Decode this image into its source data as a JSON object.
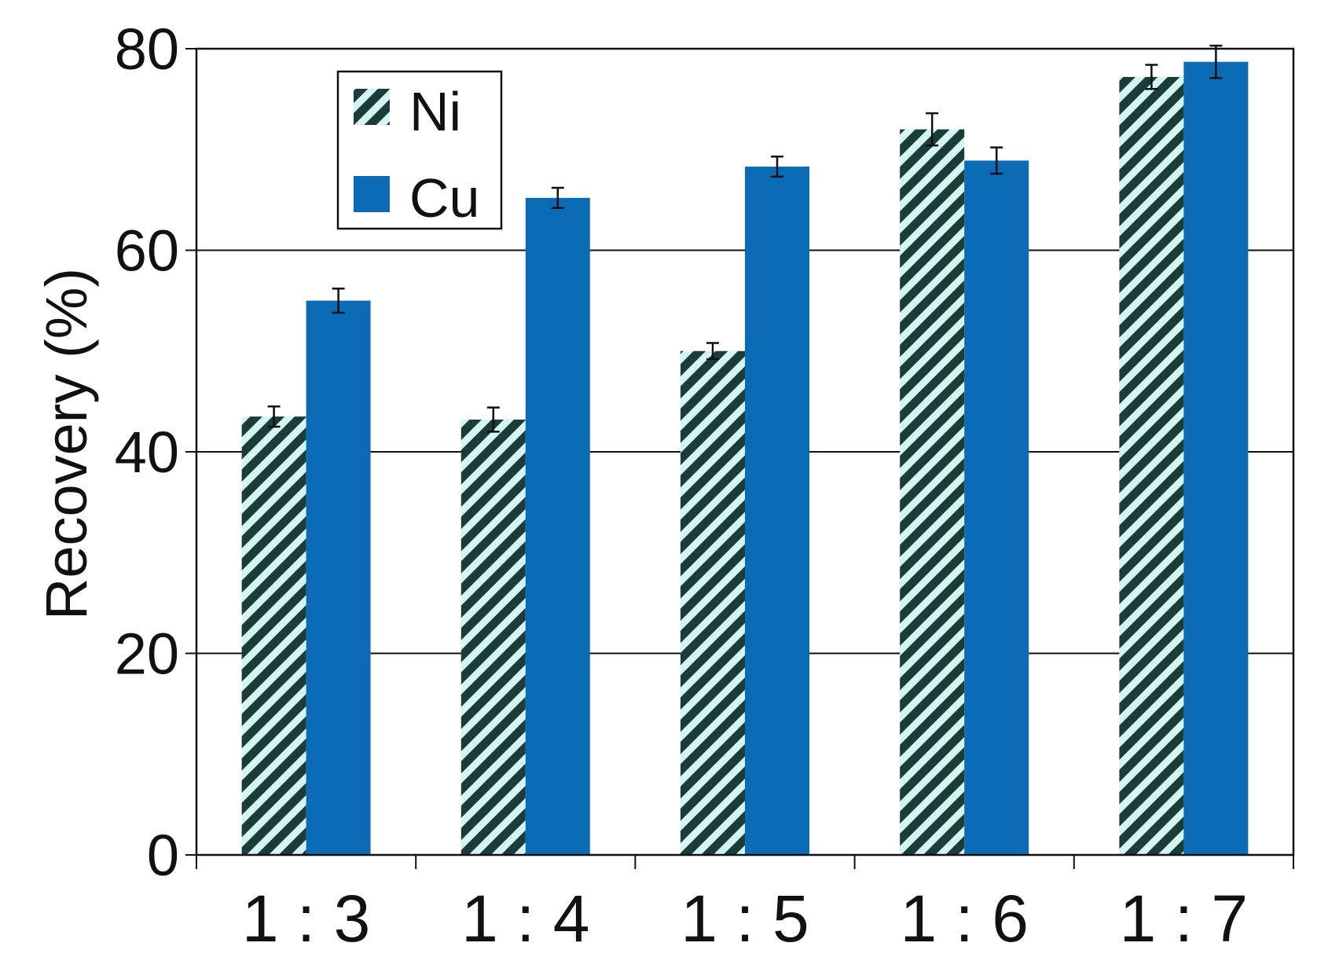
{
  "chart_data": {
    "type": "bar",
    "title": "",
    "xlabel": "",
    "ylabel": "Recovery (%)",
    "ylim": [
      0,
      80
    ],
    "yticks": [
      0,
      20,
      40,
      60,
      80
    ],
    "grid": true,
    "legend_position": "top-left",
    "categories": [
      "1 : 3",
      "1 : 4",
      "1 : 5",
      "1 : 6",
      "1 : 7"
    ],
    "series": [
      {
        "name": "Ni",
        "values": [
          43.5,
          43.2,
          50.0,
          72.0,
          77.2
        ],
        "errors": [
          1.0,
          1.2,
          0.8,
          1.6,
          1.2
        ],
        "color": "#1a3d3a",
        "pattern": "diagonal-hatch"
      },
      {
        "name": "Cu",
        "values": [
          55.0,
          65.2,
          68.3,
          68.9,
          78.7
        ],
        "errors": [
          1.2,
          1.0,
          1.0,
          1.3,
          1.6
        ],
        "color": "#0b6bb5",
        "pattern": "solid"
      }
    ]
  }
}
